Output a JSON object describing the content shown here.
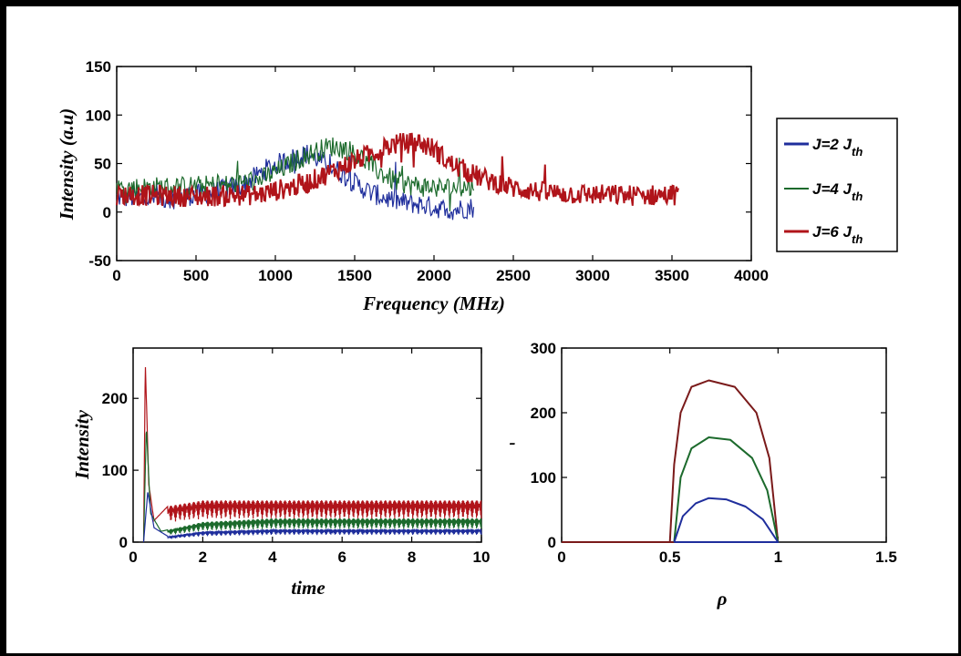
{
  "chart_data": [
    {
      "type": "line",
      "xlabel": "Frequency (MHz)",
      "ylabel": "Intensity (a.u)",
      "xlim": [
        0,
        4000
      ],
      "ylim": [
        -50,
        150
      ],
      "xticks": [
        0,
        500,
        1000,
        1500,
        2000,
        2500,
        3000,
        3500,
        4000
      ],
      "yticks": [
        -50,
        0,
        50,
        100,
        150
      ],
      "grid": false,
      "legend_position": "right, outside plot",
      "series": [
        {
          "name": "J=2 J_th",
          "color": "#1f2e9c",
          "x": [
            0,
            300,
            600,
            800,
            950,
            1100,
            1200,
            1300,
            1400,
            1500,
            1600,
            1700,
            1800,
            1900,
            2000,
            2100,
            2250
          ],
          "values": [
            15,
            14,
            20,
            28,
            45,
            55,
            60,
            52,
            42,
            30,
            20,
            14,
            10,
            8,
            5,
            2,
            5
          ]
        },
        {
          "name": "J=4 J_th",
          "color": "#1c6a2c",
          "x": [
            0,
            400,
            700,
            900,
            1050,
            1150,
            1250,
            1350,
            1450,
            1550,
            1650,
            1750,
            1850,
            1950,
            2050,
            2250
          ],
          "values": [
            25,
            26,
            28,
            33,
            45,
            55,
            62,
            68,
            65,
            55,
            42,
            32,
            28,
            26,
            25,
            26
          ]
        },
        {
          "name": "J=6 J_th",
          "color": "#b0141a",
          "x": [
            0,
            500,
            900,
            1200,
            1400,
            1600,
            1750,
            1900,
            2000,
            2100,
            2300,
            2500,
            2700,
            3000,
            3300,
            3540
          ],
          "values": [
            18,
            16,
            18,
            30,
            45,
            60,
            70,
            72,
            65,
            50,
            35,
            25,
            20,
            18,
            17,
            18
          ]
        }
      ]
    },
    {
      "type": "line",
      "xlabel": "time",
      "ylabel": "Intensity",
      "xlim": [
        0,
        10
      ],
      "ylim": [
        0,
        270
      ],
      "xticks": [
        0,
        2,
        4,
        6,
        8,
        10
      ],
      "yticks": [
        0,
        100,
        200
      ],
      "grid": false,
      "series": [
        {
          "color": "#b0141a",
          "x": [
            0.3,
            0.35,
            0.45,
            0.6,
            1,
            2,
            4,
            6,
            8,
            10
          ],
          "values": [
            0,
            250,
            80,
            30,
            50,
            58,
            58,
            58,
            58,
            58
          ]
        },
        {
          "color": "#1c6a2c",
          "x": [
            0.3,
            0.38,
            0.5,
            0.8,
            2,
            4,
            6,
            8,
            10
          ],
          "values": [
            0,
            160,
            40,
            15,
            28,
            33,
            33,
            33,
            33
          ]
        },
        {
          "color": "#1f2e9c",
          "x": [
            0.3,
            0.42,
            0.6,
            1,
            2,
            4,
            6,
            8,
            10
          ],
          "values": [
            0,
            70,
            20,
            8,
            15,
            18,
            18,
            18,
            18
          ]
        }
      ]
    },
    {
      "type": "line",
      "xlabel": "ρ",
      "ylabel": "-",
      "xlim": [
        0,
        1.5
      ],
      "ylim": [
        0,
        300
      ],
      "xticks": [
        0,
        0.5,
        1,
        1.5
      ],
      "yticks": [
        0,
        100,
        200,
        300
      ],
      "grid": false,
      "series": [
        {
          "color": "#7a1a1a",
          "x": [
            0,
            0.5,
            0.52,
            0.55,
            0.6,
            0.68,
            0.8,
            0.9,
            0.96,
            1.0,
            0.9,
            0.75,
            0.6,
            0.52,
            0.5
          ],
          "values": [
            0,
            0,
            120,
            200,
            240,
            250,
            240,
            200,
            130,
            0,
            0,
            0,
            0,
            0,
            0
          ]
        },
        {
          "color": "#1c6a2c",
          "x": [
            0.52,
            0.55,
            0.6,
            0.68,
            0.78,
            0.88,
            0.95,
            1.0,
            0.8,
            0.6,
            0.52
          ],
          "values": [
            0,
            100,
            145,
            162,
            158,
            130,
            80,
            0,
            0,
            0,
            0
          ]
        },
        {
          "color": "#1f2e9c",
          "x": [
            0.52,
            0.56,
            0.62,
            0.68,
            0.76,
            0.85,
            0.93,
            1.0,
            0.8,
            0.6,
            0.52
          ],
          "values": [
            0,
            40,
            60,
            68,
            66,
            55,
            35,
            0,
            0,
            0,
            0
          ]
        }
      ]
    }
  ],
  "legend": {
    "entries": [
      {
        "prefix": "J=2 J",
        "sub": "th",
        "color": "#1f2e9c"
      },
      {
        "prefix": "J=4 J",
        "sub": "th",
        "color": "#1c6a2c"
      },
      {
        "prefix": "J=6 J",
        "sub": "th",
        "color": "#b0141a"
      }
    ]
  }
}
